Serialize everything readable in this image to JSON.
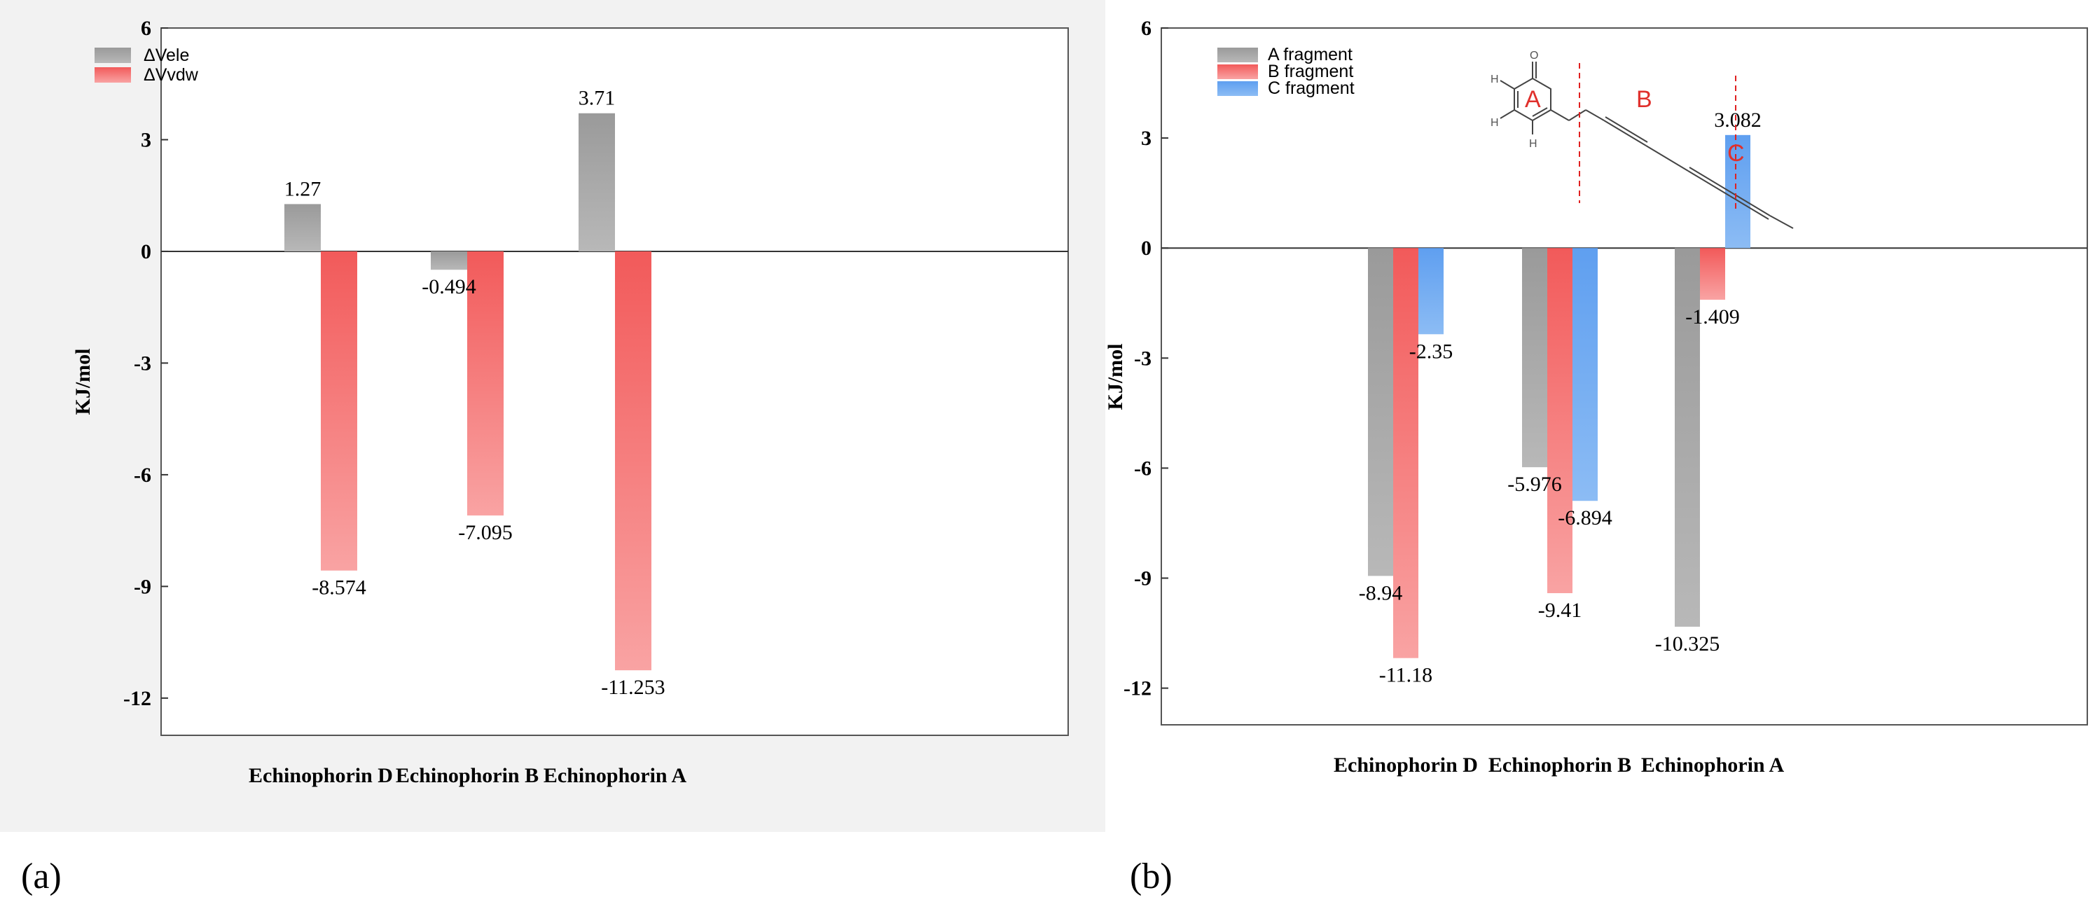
{
  "chart_data": [
    {
      "type": "bar",
      "panel_label": "(a)",
      "ylabel": "KJ/mol",
      "ylim": [
        -13,
        6
      ],
      "yticks": [
        6,
        3,
        0,
        -3,
        -6,
        -9,
        -12
      ],
      "grid": false,
      "legend_position": "top-left",
      "categories": [
        "Echinophorin D",
        "Echinophorin B",
        "Echinophorin A"
      ],
      "series": [
        {
          "name": "ΔVele",
          "color": "#a6a6a6",
          "values": [
            1.27,
            -0.494,
            3.71
          ],
          "labels": [
            "1.27",
            "-0.494",
            "3.71"
          ]
        },
        {
          "name": "ΔVvdw",
          "color": "#f46a6a",
          "values": [
            -8.574,
            -7.095,
            -11.253
          ],
          "labels": [
            "-8.574",
            "-7.095",
            "-11.253"
          ]
        }
      ]
    },
    {
      "type": "bar",
      "panel_label": "(b)",
      "ylabel": "KJ/mol",
      "ylim": [
        -13,
        6
      ],
      "yticks": [
        6,
        3,
        0,
        -3,
        -6,
        -9,
        -12
      ],
      "grid": false,
      "legend_position": "top-left",
      "categories": [
        "Echinophorin D",
        "Echinophorin B",
        "Echinophorin A"
      ],
      "series": [
        {
          "name": "A fragment",
          "color": "#a6a6a6",
          "values": [
            -8.94,
            -5.976,
            -10.325
          ],
          "labels": [
            "-8.94",
            "-5.976",
            "-10.325"
          ]
        },
        {
          "name": "B fragment",
          "color": "#f46a6a",
          "values": [
            -11.18,
            -9.41,
            -1.409
          ],
          "labels": [
            "-11.18",
            "-9.41",
            "-1.409"
          ]
        },
        {
          "name": "C fragment",
          "color": "#6aa8ee",
          "values": [
            -2.35,
            -6.894,
            3.082
          ],
          "labels": [
            "-2.35",
            "-6.894",
            "3.082"
          ]
        }
      ],
      "structure_inset": {
        "fragment_labels": [
          "A",
          "B",
          "C"
        ],
        "atom_labels": [
          "O",
          "H",
          "H",
          "H"
        ]
      }
    }
  ]
}
